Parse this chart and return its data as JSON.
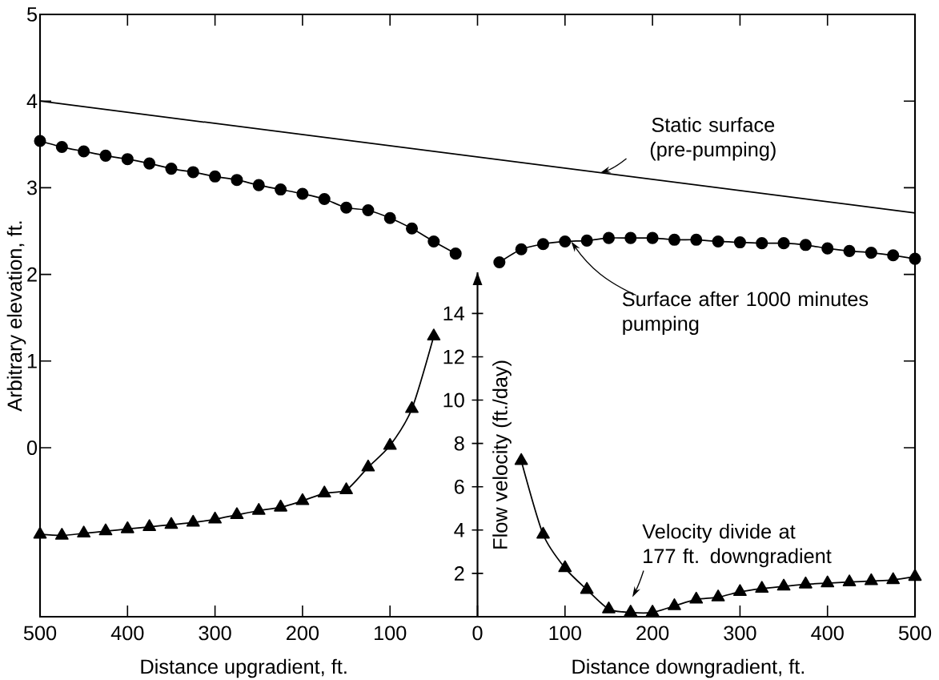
{
  "chart_data": {
    "type": "line",
    "xlabel": "Distance upgradient, ft.",
    "ylabel": "Arbitrary elevation, ft.",
    "y2label": "Flow velocity (ft./day)",
    "xlim": [
      -500,
      500
    ],
    "ylim": [
      -1.95,
      5
    ],
    "y2lim": [
      0,
      15.9
    ],
    "xticks": [
      {
        "value": -500,
        "label": "500"
      },
      {
        "value": -400,
        "label": "400"
      },
      {
        "value": -300,
        "label": "300"
      },
      {
        "value": -200,
        "label": "200"
      },
      {
        "value": -100,
        "label": "100"
      },
      0,
      100,
      200,
      300,
      400,
      500
    ],
    "yticks": [
      0,
      1,
      2,
      3,
      4,
      5
    ],
    "y2ticks": [
      2,
      4,
      6,
      8,
      10,
      12,
      14
    ],
    "series": [
      {
        "color": "#000000",
        "marker": "none",
        "x": [
          -500,
          500
        ],
        "values": [
          4.0,
          2.71
        ]
      },
      {
        "color": "#000000",
        "marker": "circle",
        "x": [
          -500,
          -475,
          -450,
          -425,
          -400,
          -375,
          -350,
          -325,
          -300,
          -275,
          -250,
          -225,
          -200,
          -175,
          -150,
          -125,
          -100,
          -75,
          -50,
          -25
        ],
        "values": [
          3.54,
          3.47,
          3.42,
          3.37,
          3.33,
          3.28,
          3.22,
          3.18,
          3.13,
          3.09,
          3.03,
          2.98,
          2.93,
          2.87,
          2.77,
          2.74,
          2.65,
          2.53,
          2.38,
          2.24
        ]
      },
      {
        "color": "#000000",
        "marker": "circle",
        "x": [
          25,
          50,
          75,
          100,
          125,
          150,
          175,
          200,
          225,
          250,
          275,
          300,
          325,
          350,
          375,
          400,
          425,
          450,
          475,
          500
        ],
        "values": [
          2.14,
          2.29,
          2.35,
          2.38,
          2.39,
          2.42,
          2.42,
          2.42,
          2.4,
          2.4,
          2.38,
          2.37,
          2.36,
          2.36,
          2.34,
          2.3,
          2.27,
          2.25,
          2.22,
          2.18
        ]
      },
      {
        "color": "#000000",
        "marker": "triangle",
        "axis": "y2",
        "x": [
          -500,
          -475,
          -450,
          -425,
          -400,
          -375,
          -350,
          -325,
          -300,
          -275,
          -250,
          -225,
          -200,
          -175,
          -150,
          -125,
          -100,
          -75,
          -50
        ],
        "values": [
          3.8,
          3.75,
          3.85,
          3.95,
          4.05,
          4.15,
          4.25,
          4.35,
          4.5,
          4.7,
          4.9,
          5.05,
          5.35,
          5.7,
          5.85,
          6.9,
          7.9,
          9.6,
          12.95
        ]
      },
      {
        "color": "#000000",
        "marker": "triangle",
        "axis": "y2",
        "x": [
          50,
          75,
          100,
          125,
          150,
          175,
          200,
          225,
          250,
          275,
          300,
          325,
          350,
          375,
          400,
          425,
          450,
          475,
          500
        ],
        "values": [
          7.2,
          3.8,
          2.25,
          1.25,
          0.35,
          0.2,
          0.2,
          0.5,
          0.8,
          0.9,
          1.15,
          1.3,
          1.4,
          1.5,
          1.55,
          1.6,
          1.65,
          1.7,
          1.85
        ]
      }
    ],
    "annotations": [
      {
        "text": "Static surface (pre-pumping)",
        "x": 140,
        "y": 3.17
      },
      {
        "text": "Surface after 1000 minutes pumping",
        "x": 107,
        "y": 2.38
      },
      "Velocity divide at 177 ft. downgradient",
      "Distance downgradient, ft."
    ]
  }
}
